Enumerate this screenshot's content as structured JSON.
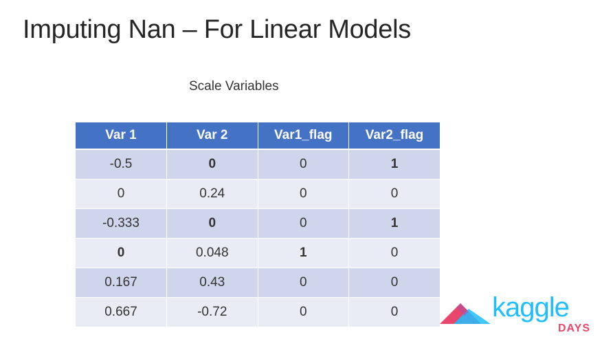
{
  "slide": {
    "title": "Imputing Nan – For Linear Models",
    "subtitle": "Scale Variables"
  },
  "table": {
    "headers": [
      "Var 1",
      "Var 2",
      "Var1_flag",
      "Var2_flag"
    ],
    "rows": [
      [
        "-0.5",
        "0",
        "0",
        "1"
      ],
      [
        "0",
        "0.24",
        "0",
        "0"
      ],
      [
        "-0.333",
        "0",
        "0",
        "1"
      ],
      [
        "0",
        "0.048",
        "1",
        "0"
      ],
      [
        "0.167",
        "0.43",
        "0",
        "0"
      ],
      [
        "0.667",
        "-0.72",
        "0",
        "0"
      ]
    ]
  },
  "logo": {
    "word": "kaggle",
    "days": "DAYS"
  },
  "colors": {
    "header_bg": "#4472c4",
    "row_odd": "#cfd5ea",
    "row_even": "#e9ebf5",
    "missing_value": "#d9203a",
    "flag_one": "#8a4a20",
    "kaggle_blue": "#20beff",
    "days_pink": "#e8476b"
  }
}
